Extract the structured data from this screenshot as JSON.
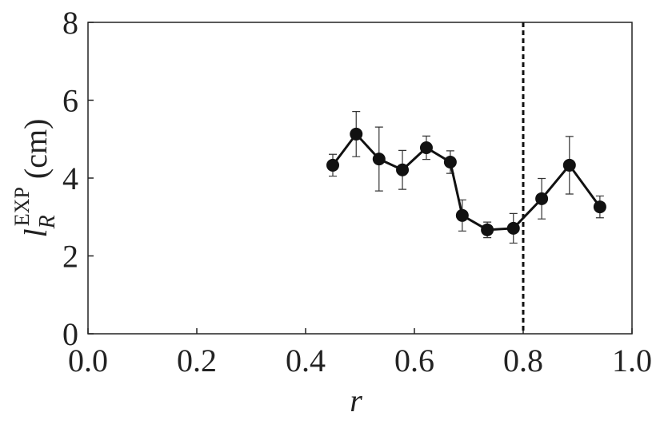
{
  "chart_data": {
    "type": "line",
    "xlabel": "r",
    "ylabel": {
      "base": "l",
      "sub": "R",
      "sup": "EXP",
      "unit": "(cm)"
    },
    "x": [
      0.45,
      0.493,
      0.535,
      0.578,
      0.622,
      0.666,
      0.688,
      0.734,
      0.782,
      0.834,
      0.885,
      0.941
    ],
    "values": [
      4.33,
      5.13,
      4.49,
      4.21,
      4.78,
      4.41,
      3.04,
      2.67,
      2.71,
      3.47,
      4.33,
      3.26
    ],
    "errors": [
      0.28,
      0.58,
      0.82,
      0.5,
      0.3,
      0.29,
      0.4,
      0.2,
      0.38,
      0.52,
      0.74,
      0.28
    ],
    "color": "#111111",
    "vline": 0.8,
    "xlim": [
      0,
      1
    ],
    "ylim": [
      0,
      8
    ],
    "xticks": [
      {
        "value": 0,
        "label": "0.0"
      },
      0.2,
      0.4,
      0.6,
      0.8,
      {
        "value": 1,
        "label": "1.0"
      }
    ],
    "yticks": [
      0,
      2,
      4,
      6,
      8
    ]
  }
}
